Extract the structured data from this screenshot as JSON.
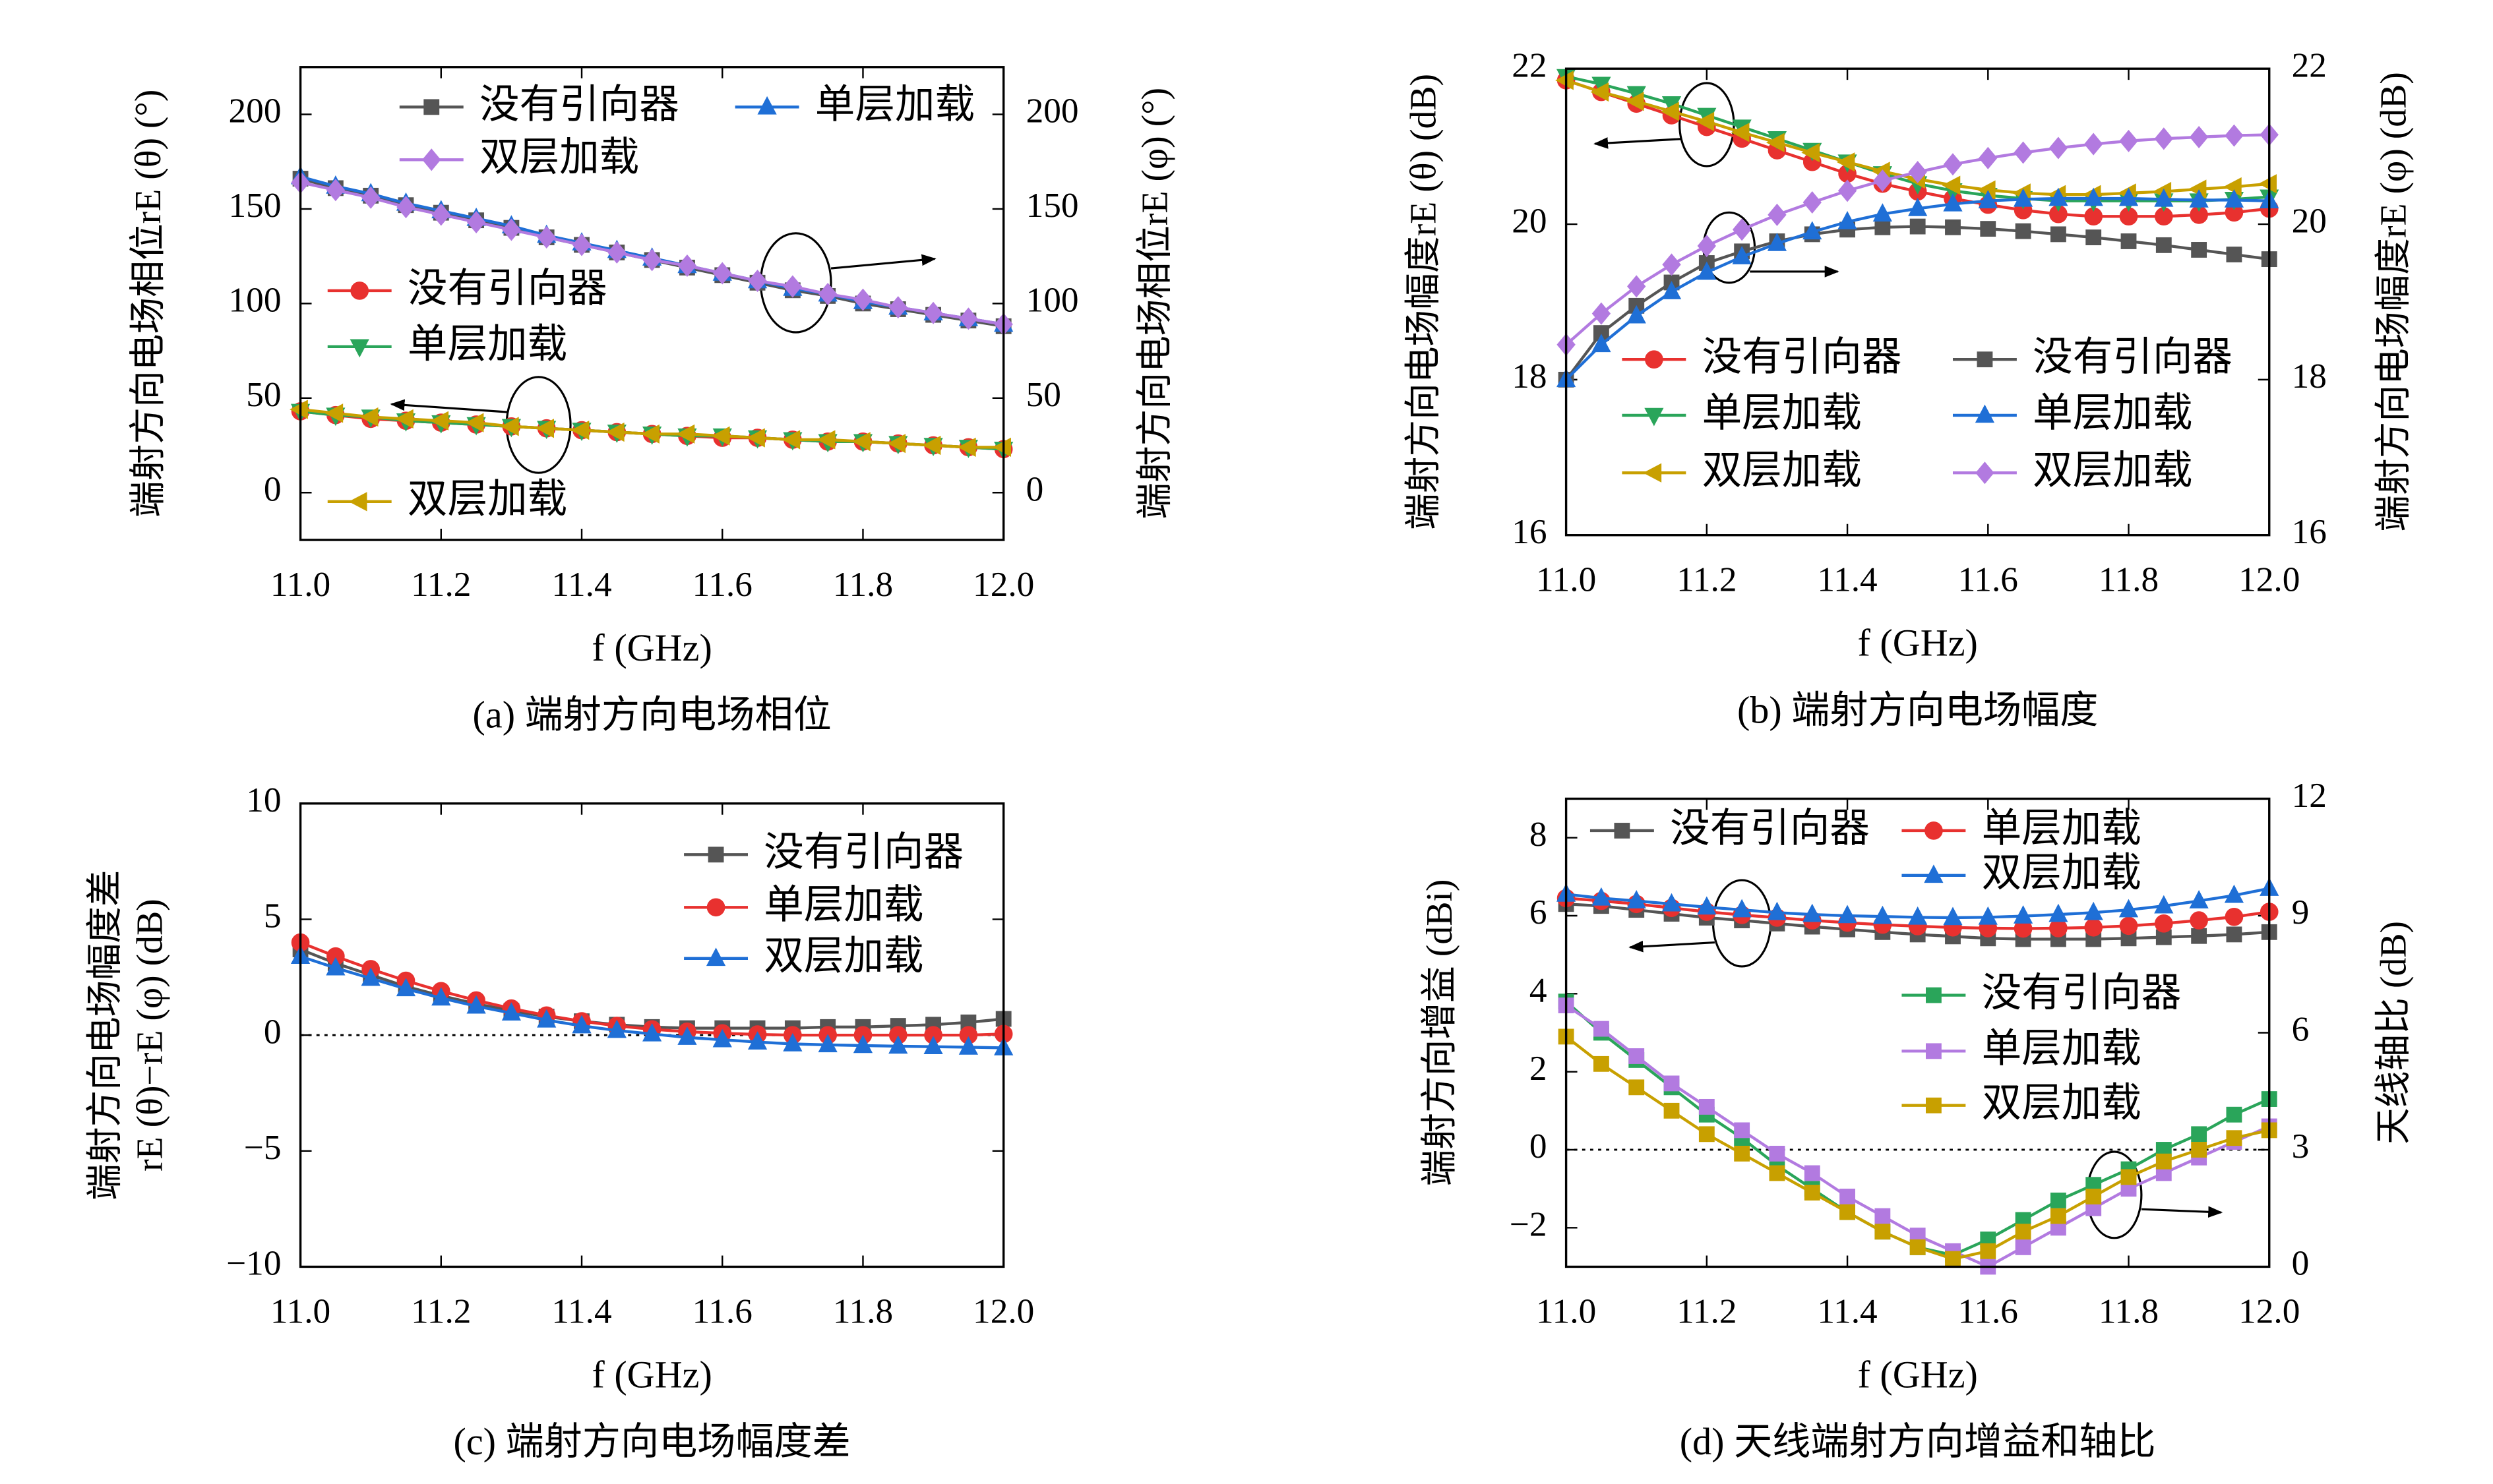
{
  "chart_data": [
    {
      "type": "line",
      "caption": "(a) 端射方向电场相位",
      "xlabel": "f (GHz)",
      "ylabel": "端射方向电场相位rE (θ) (°)",
      "y2label": "端射方向电场相位rE (φ) (°)",
      "x": [
        11.0,
        11.05,
        11.1,
        11.15,
        11.2,
        11.25,
        11.3,
        11.35,
        11.4,
        11.45,
        11.5,
        11.55,
        11.6,
        11.65,
        11.7,
        11.75,
        11.8,
        11.85,
        11.9,
        11.95,
        12.0
      ],
      "xlim": [
        11,
        12
      ],
      "xticks": [
        {
          "value": 11,
          "label": "11.0"
        },
        11.2,
        11.4,
        11.6,
        11.8,
        {
          "value": 12,
          "label": "12.0"
        }
      ],
      "ylim": [
        -25,
        225
      ],
      "yticks": [
        0,
        50,
        100,
        150,
        200
      ],
      "y2lim": [
        -25,
        225
      ],
      "y2ticks": [
        0,
        50,
        100,
        150,
        200
      ],
      "series": [
        {
          "name": "没有引向器",
          "color": "#555555",
          "marker": "square",
          "axis": "y2",
          "values": [
            166,
            161,
            157,
            152,
            148,
            144,
            140,
            135,
            131,
            127,
            123,
            119,
            115,
            111,
            107,
            104,
            100,
            97,
            94,
            91,
            88
          ]
        },
        {
          "name": "单层加载",
          "color": "#1f6fd6",
          "marker": "tri-up",
          "axis": "y2",
          "values": [
            167,
            162,
            158,
            153,
            149,
            145,
            141,
            136,
            132,
            128,
            124,
            120,
            116,
            112,
            108,
            105,
            101,
            98,
            95,
            92,
            89
          ]
        },
        {
          "name": "双层加载",
          "color": "#b27ae0",
          "marker": "diamond",
          "axis": "y2",
          "values": [
            164,
            160,
            156,
            151,
            147,
            143,
            139,
            135,
            131,
            127,
            123,
            120,
            116,
            112,
            109,
            105,
            102,
            98,
            95,
            92,
            89
          ]
        },
        {
          "name": "没有引向器",
          "color": "#e8312f",
          "marker": "circle",
          "axis": "y",
          "values": [
            43,
            41,
            39,
            38,
            37,
            36,
            35,
            34,
            33,
            32,
            31,
            30,
            29,
            29,
            28,
            27,
            27,
            26,
            25,
            24,
            23
          ]
        },
        {
          "name": "单层加载",
          "color": "#2aa55a",
          "marker": "tri-down",
          "axis": "y",
          "values": [
            43,
            41,
            40,
            38,
            37,
            36,
            35,
            34,
            33,
            32,
            31,
            30,
            30,
            29,
            28,
            27,
            27,
            26,
            25,
            24,
            23
          ]
        },
        {
          "name": "双层加载",
          "color": "#c8a000",
          "marker": "tri-left",
          "axis": "y",
          "values": [
            44,
            42,
            40,
            39,
            38,
            37,
            35,
            34,
            33,
            32,
            31,
            31,
            30,
            29,
            28,
            28,
            27,
            26,
            25,
            24,
            24
          ]
        }
      ]
    },
    {
      "type": "line",
      "caption": "(b) 端射方向电场幅度",
      "xlabel": "f (GHz)",
      "ylabel": "端射方向电场幅度rE (θ) (dB)",
      "y2label": "端射方向电场幅度rE (φ) (dB)",
      "x": [
        11.0,
        11.05,
        11.1,
        11.15,
        11.2,
        11.25,
        11.3,
        11.35,
        11.4,
        11.45,
        11.5,
        11.55,
        11.6,
        11.65,
        11.7,
        11.75,
        11.8,
        11.85,
        11.9,
        11.95,
        12.0
      ],
      "xlim": [
        11,
        12
      ],
      "xticks": [
        {
          "value": 11,
          "label": "11.0"
        },
        11.2,
        11.4,
        11.6,
        11.8,
        {
          "value": 12,
          "label": "12.0"
        }
      ],
      "ylim": [
        16,
        22
      ],
      "yticks": [
        16,
        18,
        20,
        22
      ],
      "y2lim": [
        16,
        22
      ],
      "y2ticks": [
        16,
        18,
        20,
        22
      ],
      "series": [
        {
          "name": "没有引向器",
          "color": "#e8312f",
          "marker": "circle",
          "axis": "y",
          "values": [
            21.85,
            21.7,
            21.55,
            21.4,
            21.25,
            21.1,
            20.95,
            20.8,
            20.65,
            20.52,
            20.42,
            20.33,
            20.25,
            20.18,
            20.13,
            20.1,
            20.1,
            20.1,
            20.12,
            20.15,
            20.2
          ]
        },
        {
          "name": "单层加载",
          "color": "#2aa55a",
          "marker": "tri-down",
          "axis": "y",
          "values": [
            21.9,
            21.8,
            21.68,
            21.55,
            21.4,
            21.25,
            21.1,
            20.95,
            20.8,
            20.65,
            20.52,
            20.43,
            20.37,
            20.33,
            20.3,
            20.3,
            20.3,
            20.3,
            20.3,
            20.32,
            20.35
          ]
        },
        {
          "name": "双层加载",
          "color": "#c8a000",
          "marker": "tri-left",
          "axis": "y",
          "values": [
            21.85,
            21.7,
            21.58,
            21.45,
            21.32,
            21.18,
            21.05,
            20.92,
            20.8,
            20.68,
            20.58,
            20.5,
            20.44,
            20.4,
            20.38,
            20.38,
            20.4,
            20.42,
            20.45,
            20.48,
            20.52
          ]
        },
        {
          "name": "没有引向器",
          "color": "#555555",
          "marker": "square",
          "axis": "y2",
          "values": [
            18.0,
            18.6,
            18.95,
            19.25,
            19.5,
            19.65,
            19.78,
            19.87,
            19.93,
            19.96,
            19.97,
            19.96,
            19.94,
            19.91,
            19.87,
            19.83,
            19.78,
            19.73,
            19.67,
            19.61,
            19.55
          ]
        },
        {
          "name": "单层加载",
          "color": "#1f6fd6",
          "marker": "tri-up",
          "axis": "y2",
          "values": [
            18.0,
            18.45,
            18.82,
            19.13,
            19.38,
            19.58,
            19.75,
            19.9,
            20.03,
            20.13,
            20.2,
            20.26,
            20.3,
            20.32,
            20.33,
            20.33,
            20.33,
            20.32,
            20.31,
            20.31,
            20.3
          ]
        },
        {
          "name": "双层加载",
          "color": "#b27ae0",
          "marker": "diamond",
          "axis": "y2",
          "values": [
            18.45,
            18.85,
            19.2,
            19.48,
            19.72,
            19.93,
            20.12,
            20.28,
            20.43,
            20.56,
            20.67,
            20.77,
            20.85,
            20.92,
            20.98,
            21.03,
            21.07,
            21.1,
            21.12,
            21.14,
            21.15
          ]
        }
      ]
    },
    {
      "type": "line",
      "caption": "(c) 端射方向电场幅度差",
      "xlabel": "f (GHz)",
      "ylabel": [
        "端射方向电场幅度差",
        "rE (θ)−rE (φ) (dB)"
      ],
      "zero_line": true,
      "x": [
        11.0,
        11.05,
        11.1,
        11.15,
        11.2,
        11.25,
        11.3,
        11.35,
        11.4,
        11.45,
        11.5,
        11.55,
        11.6,
        11.65,
        11.7,
        11.75,
        11.8,
        11.85,
        11.9,
        11.95,
        12.0
      ],
      "xlim": [
        11,
        12
      ],
      "xticks": [
        {
          "value": 11,
          "label": "11.0"
        },
        11.2,
        11.4,
        11.6,
        11.8,
        {
          "value": 12,
          "label": "12.0"
        }
      ],
      "ylim": [
        -10,
        10
      ],
      "yticks": [
        {
          "value": -10,
          "label": "−10"
        },
        {
          "value": -5,
          "label": "−5"
        },
        0,
        5,
        10
      ],
      "series": [
        {
          "name": "没有引向器",
          "color": "#555555",
          "marker": "square",
          "axis": "y",
          "values": [
            3.7,
            3.1,
            2.6,
            2.1,
            1.7,
            1.35,
            1.05,
            0.8,
            0.6,
            0.45,
            0.35,
            0.3,
            0.3,
            0.3,
            0.3,
            0.35,
            0.35,
            0.4,
            0.45,
            0.55,
            0.7
          ]
        },
        {
          "name": "单层加载",
          "color": "#e8312f",
          "marker": "circle",
          "axis": "y",
          "values": [
            4.0,
            3.4,
            2.85,
            2.35,
            1.9,
            1.5,
            1.15,
            0.85,
            0.6,
            0.4,
            0.25,
            0.15,
            0.08,
            0.03,
            0,
            0,
            0,
            0,
            0,
            0,
            0.05
          ]
        },
        {
          "name": "双层加载",
          "color": "#1f6fd6",
          "marker": "tri-up",
          "axis": "y",
          "values": [
            3.4,
            2.9,
            2.45,
            2.0,
            1.6,
            1.25,
            0.95,
            0.65,
            0.4,
            0.2,
            0.05,
            -0.1,
            -0.2,
            -0.3,
            -0.38,
            -0.42,
            -0.45,
            -0.48,
            -0.5,
            -0.52,
            -0.55
          ]
        }
      ]
    },
    {
      "type": "line",
      "caption": "(d) 天线端射方向增益和轴比",
      "xlabel": "f (GHz)",
      "ylabel": "端射方向增益 (dBi)",
      "y2label": "天线轴比 (dB)",
      "zero_line": true,
      "x": [
        11.0,
        11.05,
        11.1,
        11.15,
        11.2,
        11.25,
        11.3,
        11.35,
        11.4,
        11.45,
        11.5,
        11.55,
        11.6,
        11.65,
        11.7,
        11.75,
        11.8,
        11.85,
        11.9,
        11.95,
        12.0
      ],
      "xlim": [
        11,
        12
      ],
      "xticks": [
        {
          "value": 11,
          "label": "11.0"
        },
        11.2,
        11.4,
        11.6,
        11.8,
        {
          "value": 12,
          "label": "12.0"
        }
      ],
      "ylim": [
        -3,
        9
      ],
      "yticks": [
        {
          "value": -2,
          "label": "−2"
        },
        0,
        2,
        4,
        6,
        8
      ],
      "y2lim": [
        0,
        12
      ],
      "y2ticks": [
        0,
        3,
        6,
        9,
        12
      ],
      "series": [
        {
          "name": "没有引向器",
          "color": "#555555",
          "marker": "square",
          "axis": "y",
          "values": [
            6.3,
            6.25,
            6.15,
            6.05,
            5.95,
            5.88,
            5.8,
            5.72,
            5.65,
            5.58,
            5.52,
            5.47,
            5.42,
            5.4,
            5.4,
            5.4,
            5.42,
            5.45,
            5.48,
            5.52,
            5.58
          ]
        },
        {
          "name": "单层加载",
          "color": "#e8312f",
          "marker": "circle",
          "axis": "y",
          "values": [
            6.45,
            6.38,
            6.3,
            6.2,
            6.1,
            6.02,
            5.95,
            5.88,
            5.82,
            5.77,
            5.73,
            5.7,
            5.68,
            5.67,
            5.68,
            5.7,
            5.74,
            5.8,
            5.88,
            5.97,
            6.1
          ]
        },
        {
          "name": "双层加载",
          "color": "#1f6fd6",
          "marker": "tri-up",
          "axis": "y",
          "values": [
            6.55,
            6.45,
            6.38,
            6.3,
            6.22,
            6.15,
            6.08,
            6.03,
            6.0,
            5.98,
            5.96,
            5.95,
            5.96,
            5.99,
            6.03,
            6.08,
            6.15,
            6.25,
            6.38,
            6.52,
            6.7
          ]
        },
        {
          "name": "没有引向器",
          "color": "#2aa55a",
          "marker": "square",
          "axis": "y2",
          "values": [
            6.8,
            6.0,
            5.3,
            4.6,
            3.9,
            3.3,
            2.6,
            2.0,
            1.4,
            0.9,
            0.5,
            0.3,
            0.7,
            1.2,
            1.7,
            2.1,
            2.5,
            3.0,
            3.4,
            3.9,
            4.3
          ]
        },
        {
          "name": "单层加载",
          "color": "#b27ae0",
          "marker": "square",
          "axis": "y2",
          "values": [
            6.7,
            6.1,
            5.4,
            4.7,
            4.1,
            3.5,
            2.9,
            2.4,
            1.8,
            1.3,
            0.8,
            0.4,
            0.0,
            0.5,
            1.0,
            1.5,
            2.0,
            2.4,
            2.8,
            3.2,
            3.6
          ]
        },
        {
          "name": "双层加载",
          "color": "#c8a000",
          "marker": "square",
          "axis": "y2",
          "values": [
            5.9,
            5.2,
            4.6,
            4.0,
            3.4,
            2.9,
            2.4,
            1.9,
            1.4,
            0.9,
            0.5,
            0.2,
            0.4,
            0.9,
            1.3,
            1.8,
            2.3,
            2.7,
            3.0,
            3.3,
            3.5
          ]
        }
      ]
    }
  ]
}
